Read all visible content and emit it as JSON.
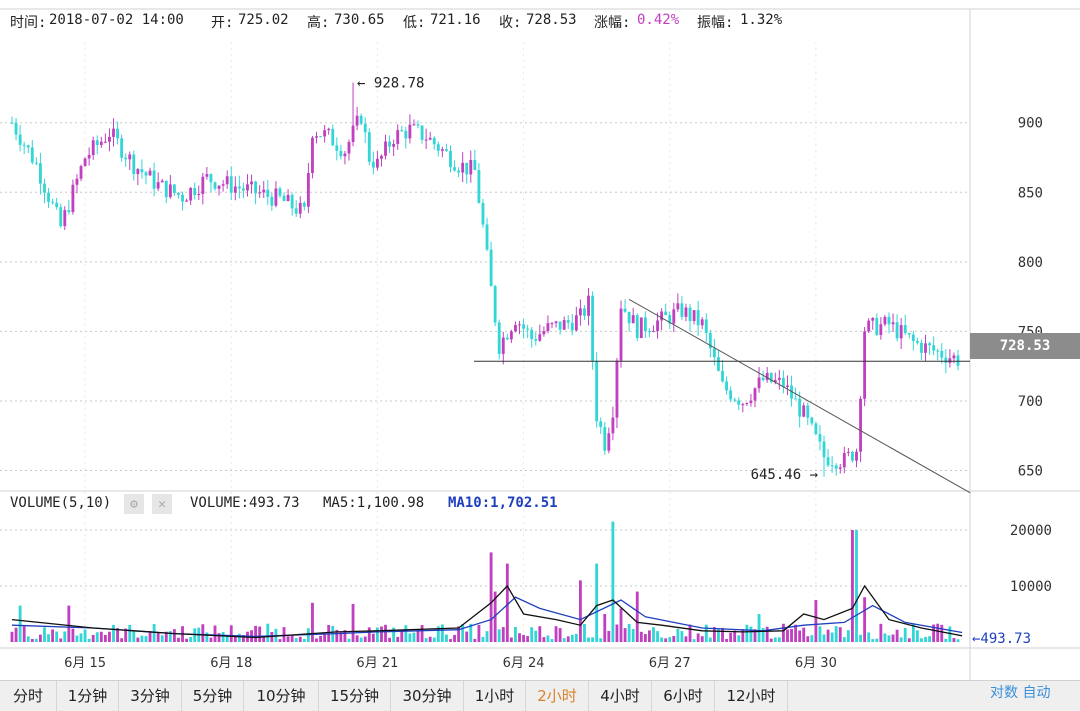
{
  "info": {
    "time_label": "时间:",
    "time": "2018-07-02 14:00",
    "open_label": "开:",
    "open": "725.02",
    "high_label": "高:",
    "high": "730.65",
    "low_label": "低:",
    "low": "721.16",
    "close_label": "收:",
    "close": "728.53",
    "change_label": "涨幅:",
    "change": "0.42%",
    "amplitude_label": "振幅:",
    "amplitude": "1.32%"
  },
  "annotations": {
    "high_marker": "← 928.78",
    "low_marker": "645.46 →",
    "volume_marker": "←493.73"
  },
  "current_price": "728.53",
  "volume_header": {
    "title": "VOLUME(5,10)",
    "volume": "VOLUME:493.73",
    "ma5": "MA5:1,100.98",
    "ma10": "MA10:1,702.51"
  },
  "tabs": [
    "分时",
    "1分钟",
    "3分钟",
    "5分钟",
    "10分钟",
    "15分钟",
    "30分钟",
    "1小时",
    "2小时",
    "4小时",
    "6小时",
    "12小时"
  ],
  "active_tab": "2小时",
  "corner_text": "对数 自动",
  "colors": {
    "up": "#c040c0",
    "down": "#33d6d6",
    "ma5": "#111111",
    "ma10": "#1f3fbf",
    "grid": "#c8c8c8",
    "active_tab": "#d9822b",
    "change": "#c040c0"
  },
  "chart_data": [
    {
      "type": "candlestick",
      "y_ticks": [
        900,
        850,
        800,
        750,
        700,
        650
      ],
      "ylim": [
        636,
        958
      ],
      "x_ticks": [
        "6月 15",
        "6月 18",
        "6月 21",
        "6月 24",
        "6月 27",
        "6月 30"
      ],
      "x_tick_index": [
        18,
        54,
        90,
        126,
        162,
        198
      ],
      "candles_count": 234,
      "price_path": [
        [
          0,
          900
        ],
        [
          6,
          870
        ],
        [
          12,
          825
        ],
        [
          18,
          875
        ],
        [
          24,
          893
        ],
        [
          30,
          870
        ],
        [
          36,
          855
        ],
        [
          42,
          847
        ],
        [
          48,
          860
        ],
        [
          54,
          855
        ],
        [
          60,
          850
        ],
        [
          66,
          845
        ],
        [
          72,
          835
        ],
        [
          74,
          895
        ],
        [
          78,
          890
        ],
        [
          82,
          880
        ],
        [
          86,
          905
        ],
        [
          88,
          875
        ],
        [
          90,
          870
        ],
        [
          94,
          890
        ],
        [
          98,
          895
        ],
        [
          102,
          890
        ],
        [
          106,
          880
        ],
        [
          110,
          870
        ],
        [
          114,
          865
        ],
        [
          116,
          825
        ],
        [
          118,
          780
        ],
        [
          120,
          740
        ],
        [
          124,
          760
        ],
        [
          128,
          745
        ],
        [
          132,
          752
        ],
        [
          136,
          755
        ],
        [
          140,
          760
        ],
        [
          142,
          770
        ],
        [
          144,
          690
        ],
        [
          146,
          670
        ],
        [
          148,
          695
        ],
        [
          150,
          770
        ],
        [
          154,
          752
        ],
        [
          160,
          758
        ],
        [
          165,
          765
        ],
        [
          170,
          755
        ],
        [
          175,
          710
        ],
        [
          180,
          700
        ],
        [
          185,
          715
        ],
        [
          190,
          712
        ],
        [
          195,
          690
        ],
        [
          200,
          660
        ],
        [
          205,
          657
        ],
        [
          208,
          665
        ],
        [
          210,
          752
        ],
        [
          216,
          755
        ],
        [
          222,
          742
        ],
        [
          228,
          735
        ],
        [
          234,
          729
        ]
      ],
      "high_marker": {
        "value": 928.78,
        "index": 84
      },
      "low_marker": {
        "value": 645.46,
        "index": 200
      },
      "current_price_line": 728.53,
      "trendline": {
        "from": [
          152,
          773
        ],
        "to": [
          236,
          634
        ]
      }
    },
    {
      "type": "volume-bar",
      "y_ticks": [
        20000,
        10000
      ],
      "ylim": [
        0,
        22500
      ],
      "last_volume": 493.73,
      "spikes": [
        [
          2,
          6500
        ],
        [
          14,
          6500
        ],
        [
          74,
          7000
        ],
        [
          84,
          6800
        ],
        [
          118,
          16000
        ],
        [
          119,
          9000
        ],
        [
          122,
          14000
        ],
        [
          140,
          11000
        ],
        [
          144,
          14000
        ],
        [
          146,
          5000
        ],
        [
          148,
          21500
        ],
        [
          150,
          6000
        ],
        [
          154,
          9000
        ],
        [
          184,
          5000
        ],
        [
          198,
          7500
        ],
        [
          207,
          20000
        ],
        [
          208,
          20000
        ],
        [
          210,
          8000
        ]
      ],
      "ma5_points": [
        [
          0,
          4000
        ],
        [
          20,
          2500
        ],
        [
          40,
          1500
        ],
        [
          60,
          800
        ],
        [
          80,
          1800
        ],
        [
          90,
          2000
        ],
        [
          110,
          2500
        ],
        [
          118,
          7000
        ],
        [
          122,
          10000
        ],
        [
          126,
          5000
        ],
        [
          134,
          4000
        ],
        [
          140,
          3000
        ],
        [
          144,
          6500
        ],
        [
          148,
          7500
        ],
        [
          154,
          3500
        ],
        [
          160,
          3000
        ],
        [
          170,
          2000
        ],
        [
          180,
          1800
        ],
        [
          190,
          2000
        ],
        [
          195,
          5000
        ],
        [
          200,
          4000
        ],
        [
          207,
          6000
        ],
        [
          210,
          10000
        ],
        [
          216,
          4000
        ],
        [
          224,
          2500
        ],
        [
          234,
          1100
        ]
      ],
      "ma10_points": [
        [
          0,
          3000
        ],
        [
          20,
          2500
        ],
        [
          40,
          1500
        ],
        [
          60,
          1000
        ],
        [
          80,
          1500
        ],
        [
          90,
          1800
        ],
        [
          110,
          2200
        ],
        [
          118,
          4000
        ],
        [
          124,
          8000
        ],
        [
          130,
          6000
        ],
        [
          140,
          4000
        ],
        [
          150,
          7500
        ],
        [
          156,
          4500
        ],
        [
          170,
          2500
        ],
        [
          185,
          2000
        ],
        [
          195,
          3000
        ],
        [
          205,
          3500
        ],
        [
          212,
          6500
        ],
        [
          220,
          3500
        ],
        [
          234,
          1700
        ]
      ]
    }
  ]
}
